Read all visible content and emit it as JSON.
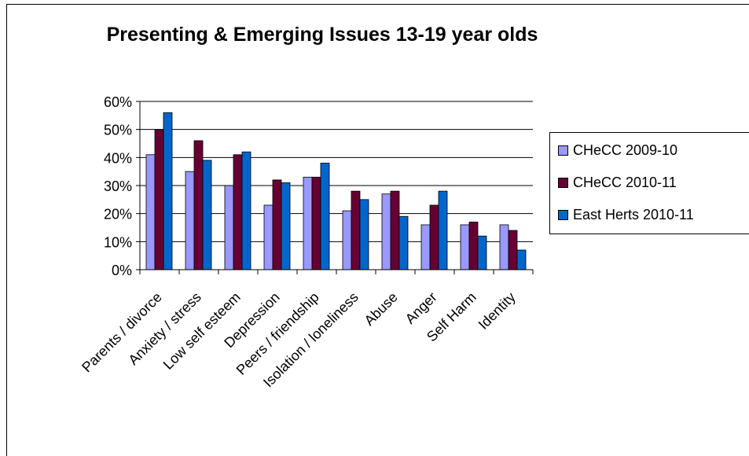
{
  "chart_data": {
    "type": "bar",
    "title": "Presenting & Emerging Issues 13-19 year olds",
    "categories": [
      "Parents / divorce",
      "Anxiety / stress",
      "Low self esteem",
      "Depression",
      "Peers / friendship",
      "Isolation / loneliness",
      "Abuse",
      "Anger",
      "Self Harm",
      "Identity"
    ],
    "series": [
      {
        "name": "CHeCC 2009-10",
        "color": "#9999ff",
        "values": [
          41,
          35,
          30,
          23,
          33,
          21,
          27,
          16,
          16,
          16
        ]
      },
      {
        "name": "CHeCC 2010-11",
        "color": "#660033",
        "values": [
          50,
          46,
          41,
          32,
          33,
          28,
          28,
          23,
          17,
          14
        ]
      },
      {
        "name": "East Herts 2010-11",
        "color": "#0066cc",
        "values": [
          56,
          39,
          42,
          31,
          38,
          25,
          19,
          28,
          12,
          7
        ]
      }
    ],
    "y_ticks": [
      "0%",
      "10%",
      "20%",
      "30%",
      "40%",
      "50%",
      "60%"
    ],
    "ylim": [
      0,
      60
    ],
    "grid": true,
    "legend_position": "right"
  }
}
